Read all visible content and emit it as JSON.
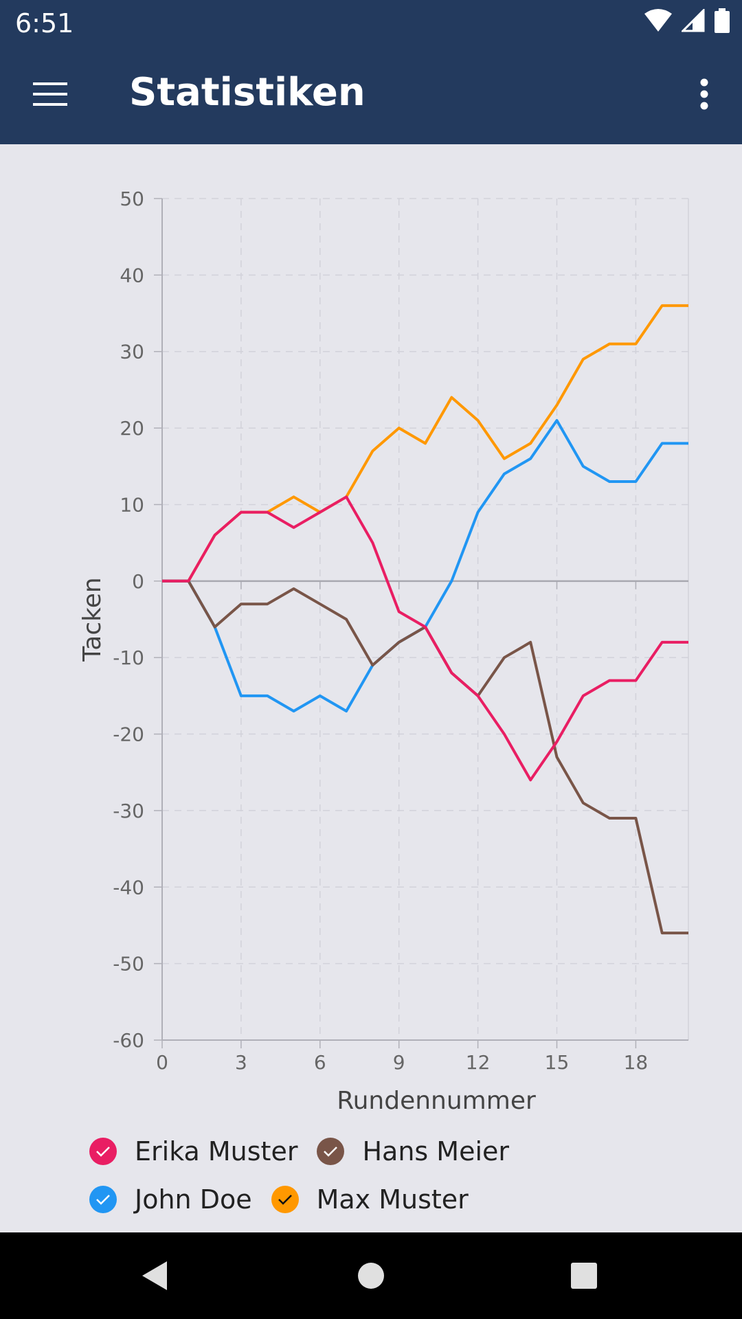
{
  "status_bar": {
    "time": "6:51",
    "icons": [
      "wifi-icon",
      "cellular-signal-icon",
      "battery-icon"
    ]
  },
  "app_bar": {
    "title": "Statistiken",
    "menu_icon": "hamburger-menu-icon",
    "overflow_icon": "more-vert-icon",
    "background": "#233a5e"
  },
  "chart_data": {
    "type": "line",
    "title": "",
    "xlabel": "Rundennummer",
    "ylabel": "Tacken",
    "xlim": [
      0,
      20
    ],
    "ylim": [
      -60,
      50
    ],
    "x_ticks": [
      0,
      3,
      6,
      9,
      12,
      15,
      18
    ],
    "y_ticks": [
      50,
      40,
      30,
      20,
      10,
      0,
      -10,
      -20,
      -30,
      -40,
      -50,
      -60
    ],
    "grid": true,
    "x": [
      0,
      1,
      2,
      3,
      4,
      5,
      6,
      7,
      8,
      9,
      10,
      11,
      12,
      13,
      14,
      15,
      16,
      17,
      18,
      19,
      20
    ],
    "series": [
      {
        "name": "Max Muster",
        "color": "#ff9800",
        "values": [
          0,
          0,
          6,
          9,
          9,
          11,
          9,
          11,
          17,
          20,
          18,
          24,
          21,
          16,
          18,
          23,
          29,
          31,
          31,
          36,
          36
        ]
      },
      {
        "name": "John Doe",
        "color": "#2196f3",
        "values": [
          0,
          0,
          -6,
          -15,
          -15,
          -17,
          -15,
          -17,
          -11,
          -8,
          -6,
          0,
          9,
          14,
          16,
          21,
          15,
          13,
          13,
          18,
          18
        ]
      },
      {
        "name": "Hans Meier",
        "color": "#795548",
        "values": [
          0,
          0,
          -6,
          -3,
          -3,
          -1,
          -3,
          -5,
          -11,
          -8,
          -6,
          -12,
          -15,
          -10,
          -8,
          -23,
          -29,
          -31,
          -31,
          -46,
          -46
        ]
      },
      {
        "name": "Erika Muster",
        "color": "#e91e63",
        "values": [
          0,
          0,
          6,
          9,
          9,
          7,
          9,
          11,
          5,
          -4,
          -6,
          -12,
          -15,
          -20,
          -26,
          -21,
          -15,
          -13,
          -13,
          -8,
          -8
        ]
      }
    ]
  },
  "legend": {
    "items": [
      {
        "label": "Erika Muster",
        "color": "#e91e63",
        "checked": true
      },
      {
        "label": "Hans Meier",
        "color": "#795548",
        "checked": true
      },
      {
        "label": "John Doe",
        "color": "#2196f3",
        "checked": true
      },
      {
        "label": "Max Muster",
        "color": "#ff9800",
        "checked": true
      }
    ]
  },
  "nav_bar": {
    "buttons": [
      "back-icon",
      "home-icon",
      "recents-icon"
    ]
  }
}
